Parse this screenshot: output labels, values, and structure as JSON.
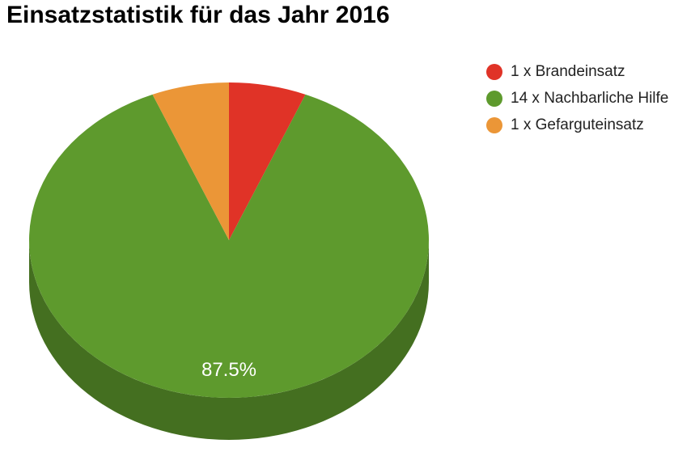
{
  "chart_data": {
    "type": "pie",
    "title": "Einsatzstatistik für das Jahr 2016",
    "slices": [
      {
        "label": "1 x Brandeinsatz",
        "value": 1,
        "color": "#E03327"
      },
      {
        "label": "14 x Nachbarliche Hilfe",
        "value": 14,
        "color": "#5E9A2D"
      },
      {
        "label": "1 x Gefarguteinsatz",
        "value": 1,
        "color": "#EB9637"
      }
    ],
    "data_labels": [
      {
        "slice": 1,
        "text": "87.5%"
      }
    ],
    "legend": "right",
    "style": "3d"
  }
}
